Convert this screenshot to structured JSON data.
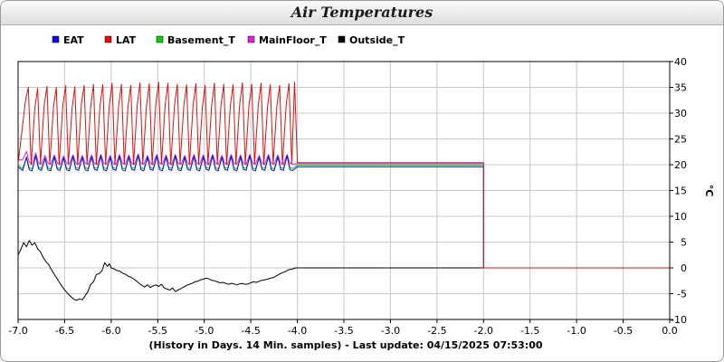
{
  "chart_data": {
    "type": "line",
    "title": "Air Temperatures",
    "xlabel": "(History in Days. 14 Min. samples) - Last update: 04/15/2025 07:53:00",
    "ylabel": "°C",
    "xlim": [
      -7.0,
      0.0
    ],
    "ylim": [
      -10,
      40
    ],
    "x_ticks": [
      -7.0,
      -6.5,
      -6.0,
      -5.5,
      -5.0,
      -4.5,
      -4.0,
      -3.5,
      -3.0,
      -2.5,
      -2.0,
      -1.5,
      -1.0,
      -0.5,
      0.0
    ],
    "x_tick_labels": [
      "-7.0",
      "-6.5",
      "-6.0",
      "-5.5",
      "-5.0",
      "-4.5",
      "-4.0",
      "-3.5",
      "-3.0",
      "-2.5",
      "-2.0",
      "-1.5",
      "-1.0",
      "-0.5",
      "0.0"
    ],
    "y_ticks": [
      -10,
      -5,
      0,
      5,
      10,
      15,
      20,
      25,
      30,
      35,
      40
    ],
    "y_tick_labels": [
      "-10",
      "-5",
      "0",
      "5",
      "10",
      "15",
      "20",
      "25",
      "30",
      "35",
      "40"
    ],
    "grid": true,
    "legend_position": "top-left",
    "series": [
      {
        "name": "EAT",
        "color": "#1010d0",
        "x": [
          -7.0,
          -6.95,
          -6.91,
          -6.88,
          -6.85,
          -6.81,
          -6.78,
          -6.75,
          -6.71,
          -6.68,
          -6.65,
          -6.61,
          -6.58,
          -6.55,
          -6.51,
          -6.48,
          -6.45,
          -6.41,
          -6.38,
          -6.35,
          -6.31,
          -6.28,
          -6.25,
          -6.21,
          -6.18,
          -6.15,
          -6.11,
          -6.08,
          -6.05,
          -6.01,
          -5.98,
          -5.95,
          -5.91,
          -5.88,
          -5.85,
          -5.81,
          -5.78,
          -5.75,
          -5.71,
          -5.68,
          -5.65,
          -5.61,
          -5.58,
          -5.55,
          -5.51,
          -5.48,
          -5.45,
          -5.41,
          -5.38,
          -5.35,
          -5.31,
          -5.28,
          -5.25,
          -5.21,
          -5.18,
          -5.15,
          -5.11,
          -5.08,
          -5.05,
          -5.01,
          -4.98,
          -4.95,
          -4.91,
          -4.88,
          -4.85,
          -4.81,
          -4.78,
          -4.75,
          -4.71,
          -4.68,
          -4.65,
          -4.61,
          -4.58,
          -4.55,
          -4.51,
          -4.48,
          -4.45,
          -4.41,
          -4.38,
          -4.35,
          -4.31,
          -4.28,
          -4.25,
          -4.21,
          -4.18,
          -4.15,
          -4.11,
          -4.08,
          -4.05,
          -4.0,
          -2.0,
          -2.0,
          0.0
        ],
        "y": [
          19.6,
          18.9,
          21.5,
          19.0,
          18.8,
          21.8,
          19.2,
          18.9,
          21.3,
          19.0,
          18.8,
          21.6,
          19.1,
          18.9,
          21.4,
          19.0,
          18.8,
          21.7,
          19.1,
          18.9,
          21.5,
          19.0,
          18.8,
          21.6,
          19.1,
          18.9,
          21.8,
          19.0,
          18.8,
          21.5,
          19.1,
          18.9,
          21.7,
          19.0,
          18.8,
          21.6,
          19.1,
          18.9,
          21.9,
          19.0,
          18.8,
          21.5,
          19.1,
          18.9,
          21.7,
          19.0,
          18.8,
          21.6,
          19.1,
          18.9,
          21.8,
          19.0,
          18.8,
          21.5,
          19.1,
          18.9,
          21.7,
          19.0,
          18.8,
          21.6,
          19.1,
          18.9,
          21.8,
          19.0,
          18.8,
          21.5,
          19.1,
          18.9,
          21.7,
          19.0,
          18.8,
          21.6,
          19.1,
          18.9,
          21.8,
          19.0,
          18.8,
          21.5,
          19.1,
          18.9,
          21.7,
          19.0,
          18.8,
          21.6,
          19.1,
          18.9,
          21.8,
          19.0,
          18.9,
          19.6,
          19.6,
          0.0,
          0.0
        ]
      },
      {
        "name": "LAT",
        "color": "#dd1111",
        "x": [
          -7.0,
          -6.92,
          -6.89,
          -6.86,
          -6.82,
          -6.79,
          -6.76,
          -6.72,
          -6.69,
          -6.66,
          -6.62,
          -6.59,
          -6.56,
          -6.52,
          -6.49,
          -6.46,
          -6.42,
          -6.39,
          -6.36,
          -6.32,
          -6.29,
          -6.26,
          -6.22,
          -6.19,
          -6.16,
          -6.12,
          -6.09,
          -6.06,
          -6.02,
          -5.99,
          -5.96,
          -5.92,
          -5.89,
          -5.86,
          -5.82,
          -5.79,
          -5.76,
          -5.72,
          -5.69,
          -5.66,
          -5.62,
          -5.59,
          -5.56,
          -5.52,
          -5.49,
          -5.46,
          -5.42,
          -5.39,
          -5.36,
          -5.32,
          -5.29,
          -5.26,
          -5.22,
          -5.19,
          -5.16,
          -5.12,
          -5.09,
          -5.06,
          -5.02,
          -4.99,
          -4.96,
          -4.92,
          -4.89,
          -4.86,
          -4.82,
          -4.79,
          -4.76,
          -4.72,
          -4.69,
          -4.66,
          -4.62,
          -4.59,
          -4.56,
          -4.52,
          -4.49,
          -4.46,
          -4.42,
          -4.39,
          -4.36,
          -4.32,
          -4.29,
          -4.26,
          -4.22,
          -4.19,
          -4.16,
          -4.12,
          -4.09,
          -4.06,
          -4.03,
          -4.0,
          -2.0,
          -2.0,
          0.0
        ],
        "y": [
          20.2,
          32.5,
          35.0,
          20.0,
          31.0,
          34.8,
          20.2,
          31.5,
          35.2,
          20.1,
          31.2,
          35.0,
          20.0,
          31.5,
          35.3,
          20.1,
          31.0,
          35.1,
          20.0,
          31.8,
          35.4,
          20.1,
          31.2,
          35.6,
          20.0,
          31.4,
          35.5,
          20.1,
          31.6,
          35.8,
          20.0,
          31.5,
          35.6,
          20.1,
          31.2,
          35.4,
          20.0,
          31.7,
          35.9,
          20.1,
          31.5,
          35.7,
          20.0,
          31.8,
          36.0,
          20.1,
          31.6,
          35.8,
          20.0,
          31.5,
          35.6,
          20.1,
          31.4,
          35.5,
          20.0,
          31.6,
          35.7,
          20.1,
          31.3,
          35.4,
          20.0,
          31.6,
          35.8,
          20.1,
          31.5,
          35.6,
          20.0,
          31.4,
          35.5,
          20.1,
          31.7,
          35.9,
          20.0,
          31.5,
          35.6,
          20.1,
          31.6,
          35.8,
          20.0,
          31.4,
          35.5,
          20.1,
          31.3,
          35.4,
          20.0,
          31.6,
          35.7,
          20.1,
          36.0,
          20.4,
          20.4,
          0.0,
          0.0
        ]
      },
      {
        "name": "Basement_T",
        "color": "#11cc11",
        "x": [
          -7.0,
          -6.95,
          -6.91,
          -6.88,
          -6.85,
          -6.81,
          -6.78,
          -6.75,
          -6.71,
          -6.68,
          -6.65,
          -6.61,
          -6.58,
          -6.55,
          -6.51,
          -6.48,
          -6.45,
          -6.41,
          -6.38,
          -6.35,
          -6.31,
          -6.28,
          -6.25,
          -6.21,
          -6.18,
          -6.15,
          -6.11,
          -6.08,
          -6.05,
          -6.01,
          -5.98,
          -5.95,
          -5.91,
          -5.88,
          -5.85,
          -5.81,
          -5.78,
          -5.75,
          -5.71,
          -5.68,
          -5.65,
          -5.61,
          -5.58,
          -5.55,
          -5.51,
          -5.48,
          -5.45,
          -5.41,
          -5.38,
          -5.35,
          -5.31,
          -5.28,
          -5.25,
          -5.21,
          -5.18,
          -5.15,
          -5.11,
          -5.08,
          -5.05,
          -5.01,
          -4.98,
          -4.95,
          -4.91,
          -4.88,
          -4.85,
          -4.81,
          -4.78,
          -4.75,
          -4.71,
          -4.68,
          -4.65,
          -4.61,
          -4.58,
          -4.55,
          -4.51,
          -4.48,
          -4.45,
          -4.41,
          -4.38,
          -4.35,
          -4.31,
          -4.28,
          -4.25,
          -4.21,
          -4.18,
          -4.15,
          -4.11,
          -4.08,
          -4.05,
          -4.0,
          -2.0
        ],
        "y": [
          19.9,
          19.3,
          21.2,
          19.4,
          19.2,
          21.5,
          19.5,
          19.3,
          21.0,
          19.4,
          19.2,
          21.3,
          19.4,
          19.3,
          21.1,
          19.4,
          19.2,
          21.4,
          19.4,
          19.3,
          21.2,
          19.4,
          19.2,
          21.3,
          19.4,
          19.3,
          21.5,
          19.4,
          19.2,
          21.2,
          19.4,
          19.3,
          21.4,
          19.4,
          19.2,
          21.3,
          19.4,
          19.3,
          21.6,
          19.4,
          19.2,
          21.2,
          19.4,
          19.3,
          21.4,
          19.4,
          19.2,
          21.3,
          19.4,
          19.3,
          21.5,
          19.4,
          19.2,
          21.2,
          19.4,
          19.3,
          21.4,
          19.4,
          19.2,
          21.3,
          19.4,
          19.3,
          21.5,
          19.4,
          19.2,
          21.2,
          19.4,
          19.3,
          21.4,
          19.4,
          19.2,
          21.3,
          19.4,
          19.3,
          21.5,
          19.4,
          19.2,
          21.2,
          19.4,
          19.3,
          21.4,
          19.4,
          19.2,
          21.3,
          19.4,
          19.3,
          21.5,
          19.4,
          19.3,
          19.9,
          19.9
        ]
      },
      {
        "name": "MainFloor_T",
        "color": "#dd22dd",
        "x": [
          -7.0,
          -6.95,
          -6.91,
          -6.88,
          -6.85,
          -6.81,
          -6.78,
          -6.75,
          -6.71,
          -6.68,
          -6.65,
          -6.61,
          -6.58,
          -6.55,
          -6.51,
          -6.48,
          -6.45,
          -6.41,
          -6.38,
          -6.35,
          -6.31,
          -6.28,
          -6.25,
          -6.21,
          -6.18,
          -6.15,
          -6.11,
          -6.08,
          -6.05,
          -6.01,
          -5.98,
          -5.95,
          -5.91,
          -5.88,
          -5.85,
          -5.81,
          -5.78,
          -5.75,
          -5.71,
          -5.68,
          -5.65,
          -5.61,
          -5.58,
          -5.55,
          -5.51,
          -5.48,
          -5.45,
          -5.41,
          -5.38,
          -5.35,
          -5.31,
          -5.28,
          -5.25,
          -5.21,
          -5.18,
          -5.15,
          -5.11,
          -5.08,
          -5.05,
          -5.01,
          -4.98,
          -4.95,
          -4.91,
          -4.88,
          -4.85,
          -4.81,
          -4.78,
          -4.75,
          -4.71,
          -4.68,
          -4.65,
          -4.61,
          -4.58,
          -4.55,
          -4.51,
          -4.48,
          -4.45,
          -4.41,
          -4.38,
          -4.35,
          -4.31,
          -4.28,
          -4.25,
          -4.21,
          -4.18,
          -4.15,
          -4.11,
          -4.08,
          -4.05,
          -4.0,
          -2.0
        ],
        "y": [
          20.9,
          21.0,
          22.6,
          20.4,
          20.2,
          22.3,
          20.3,
          20.1,
          21.8,
          20.3,
          20.1,
          21.9,
          20.3,
          20.1,
          21.7,
          20.3,
          20.1,
          21.9,
          20.3,
          20.1,
          21.8,
          20.3,
          20.1,
          21.9,
          20.3,
          20.1,
          22.0,
          20.3,
          20.1,
          21.8,
          20.3,
          20.1,
          22.0,
          20.3,
          20.1,
          21.9,
          20.3,
          20.1,
          22.1,
          20.3,
          20.1,
          21.8,
          20.3,
          20.1,
          22.0,
          20.3,
          20.1,
          21.9,
          20.3,
          20.1,
          22.0,
          20.3,
          20.1,
          21.8,
          20.3,
          20.1,
          22.0,
          20.3,
          20.1,
          21.9,
          20.3,
          20.1,
          22.0,
          20.3,
          20.1,
          21.8,
          20.3,
          20.1,
          22.0,
          20.3,
          20.1,
          21.9,
          20.3,
          20.1,
          22.0,
          20.3,
          20.1,
          21.8,
          20.3,
          20.1,
          22.0,
          20.3,
          20.1,
          21.9,
          20.3,
          20.1,
          22.0,
          20.3,
          20.1,
          20.2,
          20.2
        ]
      },
      {
        "name": "Outside_T",
        "color": "#000000",
        "x": [
          -7.0,
          -6.97,
          -6.94,
          -6.91,
          -6.88,
          -6.85,
          -6.82,
          -6.79,
          -6.76,
          -6.73,
          -6.7,
          -6.67,
          -6.64,
          -6.61,
          -6.58,
          -6.55,
          -6.52,
          -6.49,
          -6.46,
          -6.43,
          -6.4,
          -6.37,
          -6.34,
          -6.31,
          -6.28,
          -6.25,
          -6.22,
          -6.19,
          -6.16,
          -6.13,
          -6.1,
          -6.07,
          -6.04,
          -6.02,
          -6.0,
          -5.97,
          -5.94,
          -5.91,
          -5.88,
          -5.85,
          -5.82,
          -5.79,
          -5.76,
          -5.73,
          -5.7,
          -5.67,
          -5.64,
          -5.61,
          -5.58,
          -5.55,
          -5.52,
          -5.49,
          -5.46,
          -5.43,
          -5.4,
          -5.37,
          -5.34,
          -5.31,
          -5.28,
          -5.25,
          -5.22,
          -5.19,
          -5.16,
          -5.13,
          -5.1,
          -5.07,
          -5.04,
          -5.01,
          -4.98,
          -4.95,
          -4.92,
          -4.89,
          -4.86,
          -4.83,
          -4.8,
          -4.77,
          -4.74,
          -4.71,
          -4.68,
          -4.65,
          -4.62,
          -4.59,
          -4.56,
          -4.53,
          -4.5,
          -4.47,
          -4.44,
          -4.41,
          -4.38,
          -4.35,
          -4.32,
          -4.29,
          -4.26,
          -4.23,
          -4.2,
          -4.17,
          -4.14,
          -4.11,
          -4.08,
          -4.05,
          -4.02,
          -4.0,
          0.0
        ],
        "y": [
          2.5,
          3.6,
          4.9,
          4.1,
          5.3,
          4.4,
          4.9,
          3.7,
          3.1,
          2.0,
          1.2,
          0.6,
          -0.4,
          -1.3,
          -2.1,
          -3.0,
          -3.8,
          -4.5,
          -5.1,
          -5.6,
          -6.1,
          -6.3,
          -6.0,
          -6.2,
          -5.4,
          -4.6,
          -3.2,
          -2.7,
          -1.3,
          -1.1,
          -0.6,
          1.0,
          0.3,
          0.8,
          0.0,
          -0.2,
          -0.5,
          -0.6,
          -1.0,
          -1.2,
          -1.6,
          -1.8,
          -2.1,
          -2.5,
          -3.0,
          -3.4,
          -3.7,
          -3.3,
          -3.8,
          -3.5,
          -3.3,
          -3.6,
          -3.2,
          -3.9,
          -4.1,
          -4.3,
          -3.9,
          -4.6,
          -4.3,
          -4.0,
          -3.7,
          -3.4,
          -3.2,
          -3.0,
          -2.7,
          -2.6,
          -2.3,
          -2.2,
          -2.0,
          -2.1,
          -2.4,
          -2.5,
          -2.7,
          -2.9,
          -2.8,
          -3.0,
          -3.2,
          -3.0,
          -3.1,
          -3.3,
          -3.1,
          -3.0,
          -3.2,
          -3.1,
          -2.9,
          -2.7,
          -2.8,
          -2.6,
          -2.4,
          -2.3,
          -2.2,
          -2.0,
          -1.9,
          -1.6,
          -1.3,
          -1.0,
          -0.8,
          -0.5,
          -0.3,
          -0.2,
          0.0,
          0.0,
          0.0
        ]
      }
    ]
  }
}
